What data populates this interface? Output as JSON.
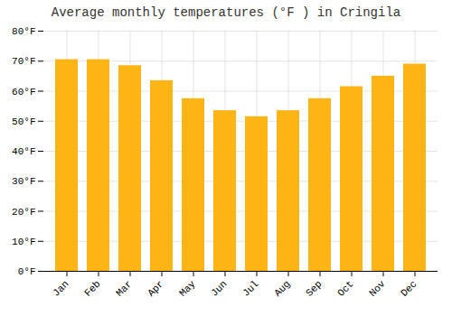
{
  "chart_data": {
    "type": "bar",
    "title": "Average monthly temperatures (°F ) in Cringila",
    "categories": [
      "Jan",
      "Feb",
      "Mar",
      "Apr",
      "May",
      "Jun",
      "Jul",
      "Aug",
      "Sep",
      "Oct",
      "Nov",
      "Dec"
    ],
    "values": [
      70.5,
      70.5,
      68.5,
      63.5,
      57.5,
      53.5,
      51.5,
      53.5,
      57.5,
      61.5,
      65.0,
      69.0
    ],
    "color": "#FDB515",
    "ylim": [
      0,
      80
    ],
    "yticks": [
      {
        "value": 0,
        "label": "0°F"
      },
      {
        "value": 10,
        "label": "10°F"
      },
      {
        "value": 20,
        "label": "20°F"
      },
      {
        "value": 30,
        "label": "30°F"
      },
      {
        "value": 40,
        "label": "40°F"
      },
      {
        "value": 50,
        "label": "50°F"
      },
      {
        "value": 60,
        "label": "60°F"
      },
      {
        "value": 70,
        "label": "70°F"
      },
      {
        "value": 80,
        "label": "80°F"
      }
    ],
    "grid": true
  }
}
